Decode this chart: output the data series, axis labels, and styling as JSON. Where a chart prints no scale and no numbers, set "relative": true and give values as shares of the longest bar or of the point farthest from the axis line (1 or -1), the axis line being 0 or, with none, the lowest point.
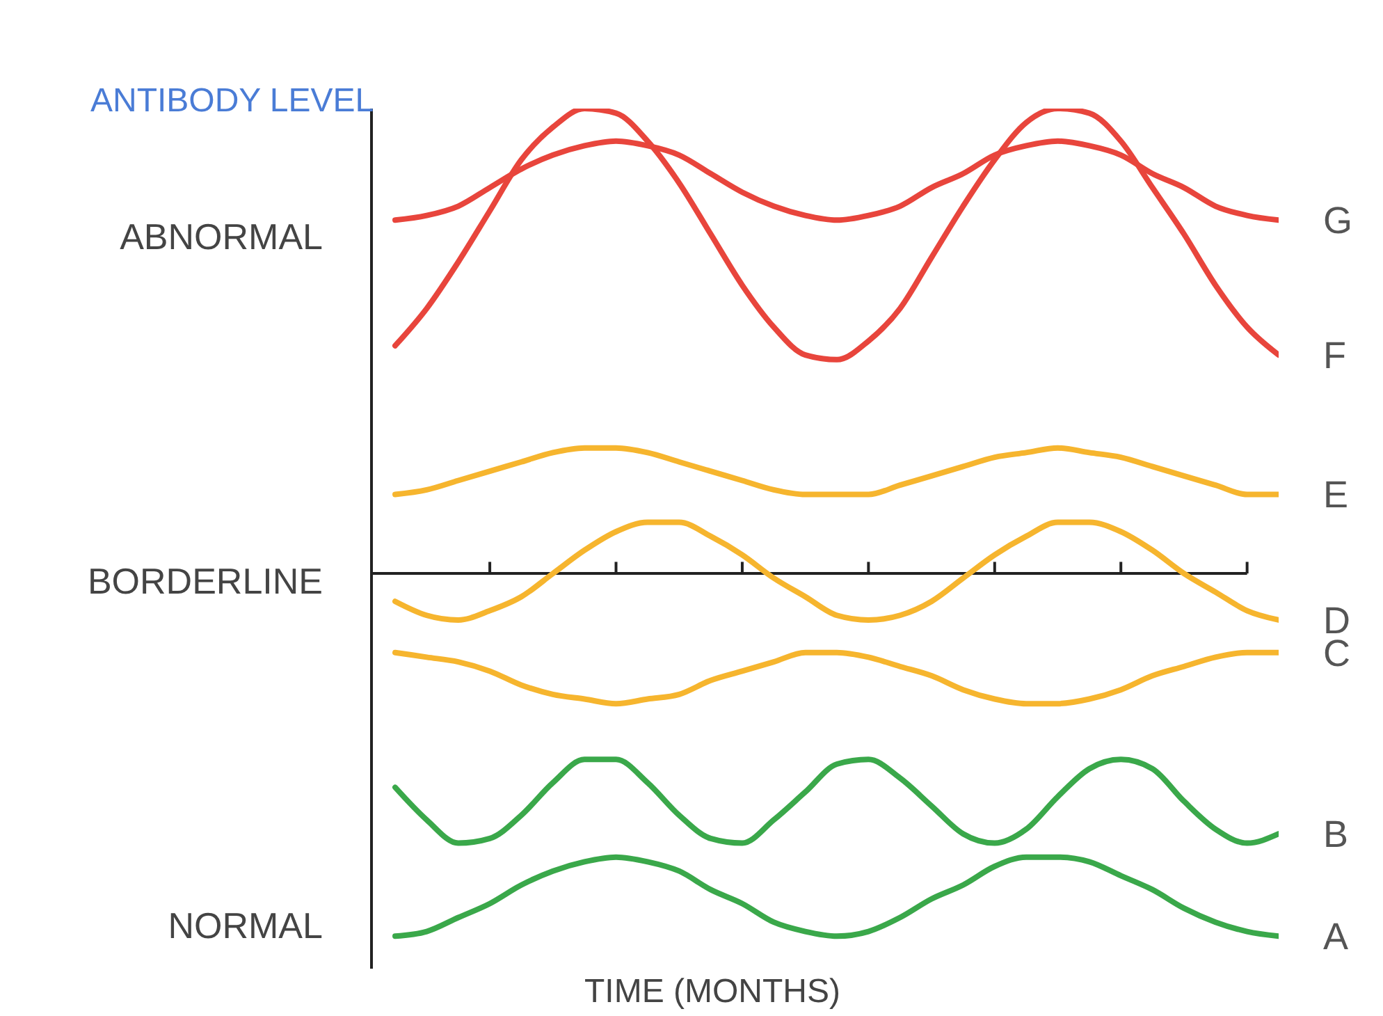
{
  "chart_data": {
    "type": "line",
    "relative": true,
    "ylabel": "ANTIBODY LEVEL",
    "xlabel": "TIME (MONTHS)",
    "grid": false,
    "legend": false,
    "marker": "none",
    "line_style": "solid",
    "annotations": [
      "ABNORMAL",
      "BORDERLINE",
      "NORMAL"
    ],
    "categories": [
      null,
      null,
      null,
      null,
      null,
      null,
      null,
      null,
      null,
      null,
      null,
      null,
      null,
      null,
      null,
      null,
      null,
      null,
      null,
      null,
      null,
      null,
      null,
      null,
      null,
      null,
      null,
      null,
      null
    ],
    "series": [
      {
        "name": "G",
        "color": "#e8453c",
        "values": [
          0.76,
          0.77,
          0.79,
          0.83,
          0.87,
          0.9,
          0.92,
          0.93,
          0.92,
          0.9,
          0.86,
          0.82,
          0.79,
          0.77,
          0.76,
          0.77,
          0.79,
          0.83,
          0.86,
          0.9,
          0.92,
          0.93,
          0.92,
          0.9,
          0.86,
          0.83,
          0.79,
          0.77,
          0.76
        ]
      },
      {
        "name": "F",
        "color": "#e8453c",
        "values": [
          0.49,
          0.57,
          0.67,
          0.78,
          0.89,
          0.96,
          1.0,
          0.99,
          0.93,
          0.84,
          0.73,
          0.62,
          0.53,
          0.47,
          0.46,
          0.5,
          0.57,
          0.68,
          0.79,
          0.89,
          0.97,
          1.0,
          0.99,
          0.93,
          0.83,
          0.73,
          0.62,
          0.53,
          0.47
        ]
      },
      {
        "name": "E",
        "color": "#f6b52e",
        "values": [
          0.17,
          0.18,
          0.2,
          0.22,
          0.24,
          0.26,
          0.27,
          0.27,
          0.26,
          0.24,
          0.22,
          0.2,
          0.18,
          0.17,
          0.17,
          0.17,
          0.19,
          0.21,
          0.23,
          0.25,
          0.26,
          0.27,
          0.26,
          0.25,
          0.23,
          0.21,
          0.19,
          0.17,
          0.17
        ]
      },
      {
        "name": "D",
        "color": "#f6b52e",
        "values": [
          -0.06,
          -0.09,
          -0.1,
          -0.08,
          -0.05,
          0.0,
          0.05,
          0.09,
          0.11,
          0.11,
          0.08,
          0.04,
          -0.01,
          -0.05,
          -0.09,
          -0.1,
          -0.09,
          -0.06,
          -0.01,
          0.04,
          0.08,
          0.11,
          0.11,
          0.09,
          0.05,
          0.0,
          -0.04,
          -0.08,
          -0.1
        ]
      },
      {
        "name": "C",
        "color": "#f6b52e",
        "values": [
          -0.17,
          -0.18,
          -0.19,
          -0.21,
          -0.24,
          -0.26,
          -0.27,
          -0.28,
          -0.27,
          -0.26,
          -0.23,
          -0.21,
          -0.19,
          -0.17,
          -0.17,
          -0.18,
          -0.2,
          -0.22,
          -0.25,
          -0.27,
          -0.28,
          -0.28,
          -0.27,
          -0.25,
          -0.22,
          -0.2,
          -0.18,
          -0.17,
          -0.17
        ]
      },
      {
        "name": "B",
        "color": "#3aa84a",
        "values": [
          -0.46,
          -0.53,
          -0.58,
          -0.57,
          -0.52,
          -0.45,
          -0.4,
          -0.4,
          -0.45,
          -0.52,
          -0.57,
          -0.58,
          -0.53,
          -0.47,
          -0.41,
          -0.4,
          -0.44,
          -0.5,
          -0.56,
          -0.58,
          -0.55,
          -0.48,
          -0.42,
          -0.4,
          -0.42,
          -0.49,
          -0.55,
          -0.58,
          -0.56
        ]
      },
      {
        "name": "A",
        "color": "#3aa84a",
        "values": [
          -0.78,
          -0.77,
          -0.74,
          -0.71,
          -0.67,
          -0.64,
          -0.62,
          -0.61,
          -0.62,
          -0.64,
          -0.68,
          -0.71,
          -0.75,
          -0.77,
          -0.78,
          -0.77,
          -0.74,
          -0.7,
          -0.67,
          -0.63,
          -0.61,
          -0.61,
          -0.62,
          -0.65,
          -0.68,
          -0.72,
          -0.75,
          -0.77,
          -0.78
        ]
      }
    ]
  }
}
